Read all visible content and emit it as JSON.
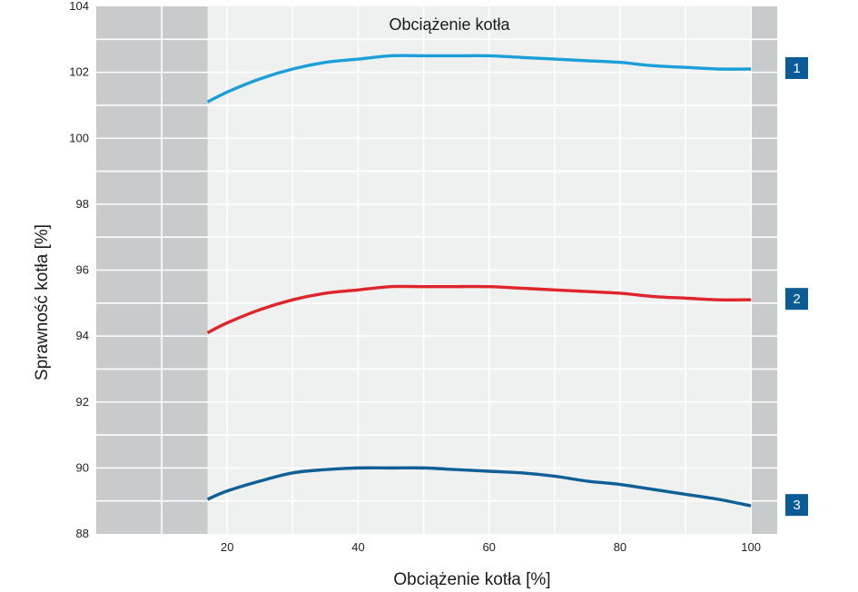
{
  "chart_data": {
    "type": "line",
    "title": "Obciążenie kotła",
    "xlabel": "Obciążenie kotła [%]",
    "ylabel": "Sprawność kotła [%]",
    "xlim": [
      0,
      104
    ],
    "ylim": [
      88,
      104
    ],
    "x_ticks": [
      "20",
      "40",
      "60",
      "80",
      "100"
    ],
    "y_ticks": [
      "88",
      "90",
      "92",
      "94",
      "96",
      "98",
      "100",
      "102",
      "104"
    ],
    "x_minor_grid": [
      10,
      30,
      50,
      70,
      90
    ],
    "y_minor_grid": [
      89,
      91,
      93,
      95,
      97,
      99,
      101,
      103
    ],
    "shaded_regions": [
      {
        "from": 0,
        "to": 17,
        "color": "#c9cacc"
      },
      {
        "from": 100,
        "to": 104,
        "color": "#c9cacc"
      }
    ],
    "plot_background": "#eff0f0",
    "grid": true,
    "series": [
      {
        "name": "1",
        "color": "#1b9fd8",
        "x": [
          17,
          20,
          25,
          30,
          35,
          40,
          45,
          50,
          55,
          60,
          65,
          70,
          75,
          80,
          85,
          90,
          95,
          100
        ],
        "y": [
          101.1,
          101.4,
          101.8,
          102.1,
          102.3,
          102.4,
          102.5,
          102.5,
          102.5,
          102.5,
          102.45,
          102.4,
          102.35,
          102.3,
          102.2,
          102.15,
          102.1,
          102.1
        ]
      },
      {
        "name": "2",
        "color": "#e0242b",
        "x": [
          17,
          20,
          25,
          30,
          35,
          40,
          45,
          50,
          55,
          60,
          65,
          70,
          75,
          80,
          85,
          90,
          95,
          100
        ],
        "y": [
          94.1,
          94.4,
          94.8,
          95.1,
          95.3,
          95.4,
          95.5,
          95.5,
          95.5,
          95.5,
          95.45,
          95.4,
          95.35,
          95.3,
          95.2,
          95.15,
          95.1,
          95.1
        ]
      },
      {
        "name": "3",
        "color": "#0d5f96",
        "x": [
          17,
          20,
          25,
          30,
          35,
          40,
          45,
          50,
          55,
          60,
          65,
          70,
          75,
          80,
          85,
          90,
          95,
          100
        ],
        "y": [
          89.05,
          89.3,
          89.6,
          89.85,
          89.95,
          90.0,
          90.0,
          90.0,
          89.95,
          89.9,
          89.85,
          89.75,
          89.6,
          89.5,
          89.35,
          89.2,
          89.05,
          88.85
        ]
      }
    ],
    "series_labels": [
      "1",
      "2",
      "3"
    ],
    "badge_color": "#0b5c96"
  }
}
